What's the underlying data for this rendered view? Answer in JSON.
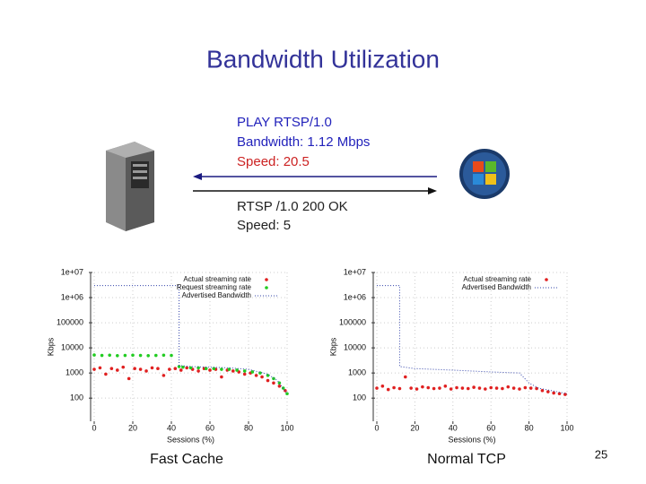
{
  "slide": {
    "title": "Bandwidth Utilization",
    "request": [
      "PLAY  RTSP/1.0",
      "Bandwidth: 1.12 Mbps",
      "Speed: 20.5"
    ],
    "response": [
      "RTSP /1.0 200 OK",
      "Speed: 5"
    ],
    "captions": [
      "Fast Cache",
      "Normal TCP"
    ],
    "page_number": "25"
  },
  "chart_data": [
    {
      "type": "scatter",
      "log_y": true,
      "legend": "top-right",
      "xlabel": "Sessions (%)",
      "ylabel": "Kbps",
      "xlim": [
        0,
        100
      ],
      "xticks": [
        0,
        20,
        40,
        60,
        80,
        100
      ],
      "ylim": [
        12,
        10000000
      ],
      "yticks": [
        100,
        1000,
        10000,
        100000,
        {
          "value": 1000000,
          "label": "1e+06"
        },
        {
          "value": 10000000,
          "label": "1e+07"
        }
      ],
      "series": [
        {
          "name": "Actual streaming rate",
          "color": "#e02020",
          "style": "points",
          "x": [
            0,
            3,
            6,
            9,
            12,
            15,
            18,
            21,
            24,
            27,
            30,
            33,
            36,
            39,
            42,
            45,
            48,
            51,
            54,
            57,
            60,
            63,
            66,
            69,
            72,
            75,
            78,
            81,
            84,
            87,
            90,
            93,
            96,
            99
          ],
          "values": [
            1400,
            1600,
            900,
            1500,
            1300,
            1700,
            600,
            1500,
            1400,
            1200,
            1600,
            1500,
            800,
            1400,
            1500,
            1300,
            1600,
            1400,
            1200,
            1500,
            1300,
            1400,
            700,
            1300,
            1200,
            1100,
            900,
            1000,
            800,
            700,
            500,
            400,
            300,
            200
          ]
        },
        {
          "name": "Request streaming rate",
          "color": "#22cc22",
          "style": "points",
          "x": [
            0,
            4,
            8,
            12,
            16,
            20,
            24,
            28,
            32,
            36,
            40,
            44,
            46,
            50,
            54,
            58,
            62,
            66,
            70,
            74,
            78,
            82,
            86,
            90,
            93,
            96,
            98,
            100
          ],
          "values": [
            5200,
            5000,
            5100,
            4900,
            5000,
            5100,
            5000,
            4900,
            5000,
            5100,
            5000,
            1800,
            1700,
            1600,
            1600,
            1500,
            1500,
            1400,
            1400,
            1300,
            1200,
            1100,
            1000,
            800,
            600,
            400,
            250,
            150
          ]
        },
        {
          "name": "Advertised Bandwidth",
          "color": "#3344aa",
          "style": "dotted-line",
          "x": [
            0,
            44,
            44,
            50,
            60,
            70,
            80,
            90,
            95,
            100
          ],
          "values": [
            3000000,
            3000000,
            2000,
            1800,
            1700,
            1600,
            1400,
            900,
            500,
            150
          ]
        }
      ]
    },
    {
      "type": "scatter",
      "log_y": true,
      "legend": "top-right",
      "xlabel": "Sessions (%)",
      "ylabel": "Kbps",
      "xlim": [
        0,
        100
      ],
      "xticks": [
        0,
        20,
        40,
        60,
        80,
        100
      ],
      "ylim": [
        12,
        10000000
      ],
      "yticks": [
        100,
        1000,
        10000,
        100000,
        {
          "value": 1000000,
          "label": "1e+06"
        },
        {
          "value": 10000000,
          "label": "1e+07"
        }
      ],
      "series": [
        {
          "name": "Actual streaming rate",
          "color": "#e02020",
          "style": "points",
          "x": [
            0,
            3,
            6,
            9,
            12,
            15,
            18,
            21,
            24,
            27,
            30,
            33,
            36,
            39,
            42,
            45,
            48,
            51,
            54,
            57,
            60,
            63,
            66,
            69,
            72,
            75,
            78,
            81,
            84,
            87,
            90,
            93,
            96,
            99
          ],
          "values": [
            250,
            300,
            220,
            260,
            240,
            700,
            250,
            230,
            280,
            260,
            240,
            250,
            300,
            230,
            260,
            250,
            240,
            270,
            250,
            230,
            260,
            250,
            240,
            280,
            250,
            230,
            260,
            250,
            240,
            200,
            180,
            160,
            150,
            140
          ]
        },
        {
          "name": "Advertised Bandwidth",
          "color": "#3344aa",
          "style": "dotted-line",
          "x": [
            0,
            12,
            12,
            20,
            40,
            60,
            75,
            80,
            85,
            100
          ],
          "values": [
            3000000,
            3000000,
            1800,
            1500,
            1300,
            1100,
            1000,
            400,
            250,
            150
          ]
        }
      ]
    }
  ]
}
